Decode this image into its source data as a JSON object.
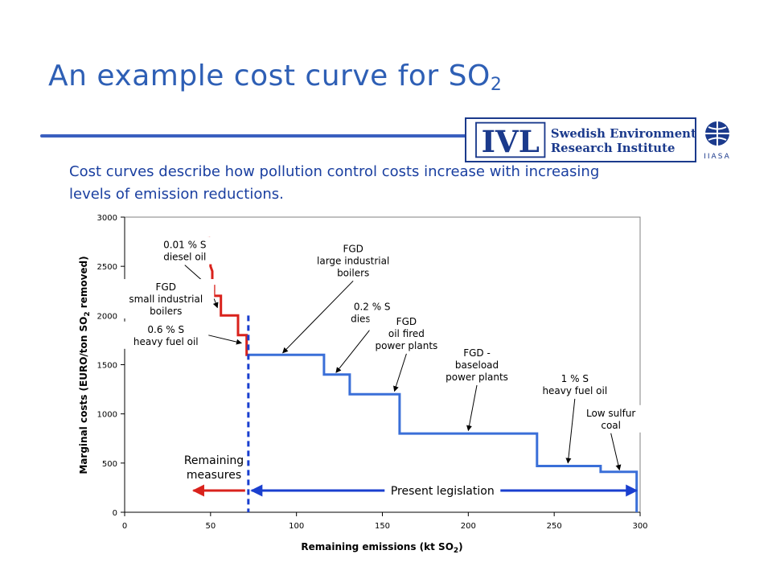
{
  "slide": {
    "title_main": "An example cost curve for SO",
    "title_sub": "2",
    "intro": "Cost curves describe how pollution control costs increase with increasing levels of emission reductions."
  },
  "logos": {
    "ivl_mark": "IVL",
    "ivl_line1": "Swedish Environmental",
    "ivl_line2": "Research Institute",
    "iiasa": "IIASA"
  },
  "chart_data": {
    "type": "line",
    "xlabel_main": "Remaining emissions (kt SO",
    "xlabel_sub": "2",
    "xlabel_end": ")",
    "ylabel_main": "Marginal costs (EURO/ton SO",
    "ylabel_sub": "2",
    "ylabel_end": " removed)",
    "xlim": [
      0,
      300
    ],
    "ylim": [
      0,
      3000
    ],
    "xticks": [
      "0",
      "50",
      "100",
      "150",
      "200",
      "250",
      "300"
    ],
    "yticks": [
      "0",
      "500",
      "1000",
      "1500",
      "2000",
      "2500",
      "3000"
    ],
    "grid": false,
    "present_legislation_x": 72,
    "series": [
      {
        "color": "#d9221c",
        "points": [
          [
            49,
            2800
          ],
          [
            50,
            2700
          ],
          [
            50,
            2500
          ],
          [
            51,
            2450
          ],
          [
            51,
            2300
          ],
          [
            52,
            2300
          ],
          [
            52,
            2200
          ],
          [
            56,
            2200
          ],
          [
            56,
            2000
          ],
          [
            66,
            2000
          ],
          [
            66,
            1800
          ],
          [
            71,
            1800
          ],
          [
            71,
            1600
          ],
          [
            72,
            1600
          ]
        ]
      },
      {
        "color": "#3a6fd8",
        "points": [
          [
            72,
            1600
          ],
          [
            116,
            1600
          ],
          [
            116,
            1400
          ],
          [
            131,
            1400
          ],
          [
            131,
            1200
          ],
          [
            160,
            1200
          ],
          [
            160,
            800
          ],
          [
            240,
            800
          ],
          [
            240,
            470
          ],
          [
            277,
            470
          ],
          [
            277,
            410
          ],
          [
            298,
            410
          ],
          [
            298,
            0
          ]
        ]
      }
    ],
    "annotations": [
      {
        "lines": [
          "0.01 % S",
          "diesel oil"
        ],
        "x": 35,
        "y": 2660,
        "ax": 52,
        "ay": 2250
      },
      {
        "lines": [
          "FGD",
          "small industrial",
          "boilers"
        ],
        "x": 24,
        "y": 2170,
        "ax": 54,
        "ay": 2080
      },
      {
        "lines": [
          "0.6 % S",
          "heavy fuel oil"
        ],
        "x": 24,
        "y": 1800,
        "ax": 68,
        "ay": 1720
      },
      {
        "lines": [
          "FGD",
          "large industrial",
          "boilers"
        ],
        "x": 133,
        "y": 2560,
        "ax": 92,
        "ay": 1620
      },
      {
        "lines": [
          "0.2 % S",
          "diesel oil"
        ],
        "x": 144,
        "y": 2030,
        "ax": 123,
        "ay": 1420
      },
      {
        "lines": [
          "FGD",
          "oil fired",
          "power plants"
        ],
        "x": 164,
        "y": 1820,
        "ax": 157,
        "ay": 1230
      },
      {
        "lines": [
          "FGD -",
          "baseload",
          "power plants"
        ],
        "x": 205,
        "y": 1500,
        "ax": 200,
        "ay": 830
      },
      {
        "lines": [
          "1 % S",
          "heavy fuel oil"
        ],
        "x": 262,
        "y": 1300,
        "ax": 258,
        "ay": 500
      },
      {
        "lines": [
          "Low sulfur",
          "coal"
        ],
        "x": 283,
        "y": 950,
        "ax": 288,
        "ay": 430
      }
    ],
    "remaining_label": [
      "Remaining",
      "measures"
    ],
    "remaining_arrow": [
      40,
      72
    ],
    "present_label": "Present legislation",
    "present_arrow": [
      72,
      298
    ]
  }
}
